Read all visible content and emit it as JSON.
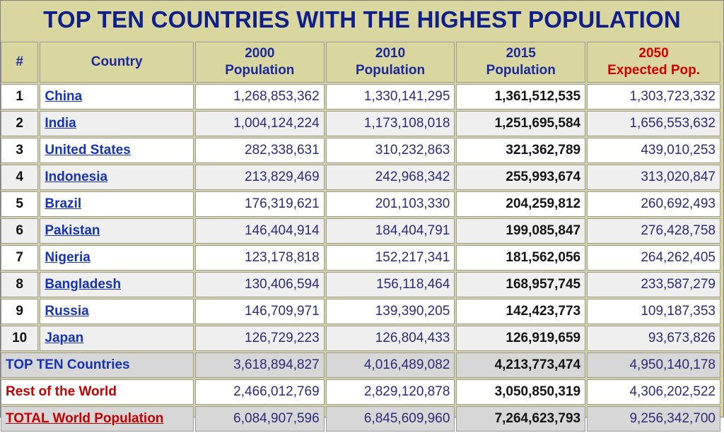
{
  "title": "TOP TEN COUNTRIES WITH THE HIGHEST POPULATION",
  "headers": {
    "rank": "#",
    "country": "Country",
    "y2000_line1": "2000",
    "y2000_line2": "Population",
    "y2010_line1": "2010",
    "y2010_line2": "Population",
    "y2015_line1": "2015",
    "y2015_line2": "Population",
    "y2050_line1": "2050",
    "y2050_line2": "Expected Pop."
  },
  "rows": [
    {
      "rank": "1",
      "country": "China",
      "p2000": "1,268,853,362",
      "p2010": "1,330,141,295",
      "p2015": "1,361,512,535",
      "p2050": "1,303,723,332"
    },
    {
      "rank": "2",
      "country": "India",
      "p2000": "1,004,124,224",
      "p2010": "1,173,108,018",
      "p2015": "1,251,695,584",
      "p2050": "1,656,553,632"
    },
    {
      "rank": "3",
      "country": "United States",
      "p2000": "282,338,631",
      "p2010": "310,232,863",
      "p2015": "321,362,789",
      "p2050": "439,010,253"
    },
    {
      "rank": "4",
      "country": "Indonesia",
      "p2000": "213,829,469",
      "p2010": "242,968,342",
      "p2015": "255,993,674",
      "p2050": "313,020,847"
    },
    {
      "rank": "5",
      "country": "Brazil",
      "p2000": "176,319,621",
      "p2010": "201,103,330",
      "p2015": "204,259,812",
      "p2050": "260,692,493"
    },
    {
      "rank": "6",
      "country": "Pakistan",
      "p2000": "146,404,914",
      "p2010": "184,404,791",
      "p2015": "199,085,847",
      "p2050": "276,428,758"
    },
    {
      "rank": "7",
      "country": "Nigeria",
      "p2000": "123,178,818",
      "p2010": "152,217,341",
      "p2015": "181,562,056",
      "p2050": "264,262,405"
    },
    {
      "rank": "8",
      "country": "Bangladesh",
      "p2000": "130,406,594",
      "p2010": "156,118,464",
      "p2015": "168,957,745",
      "p2050": "233,587,279"
    },
    {
      "rank": "9",
      "country": "Russia",
      "p2000": "146,709,971",
      "p2010": "139,390,205",
      "p2015": "142,423,773",
      "p2050": "109,187,353"
    },
    {
      "rank": "10",
      "country": "Japan",
      "p2000": "126,729,223",
      "p2010": "126,804,433",
      "p2015": "126,919,659",
      "p2050": "93,673,826"
    }
  ],
  "summary": {
    "top_ten": {
      "label": "TOP TEN Countries",
      "p2000": "3,618,894,827",
      "p2010": "4,016,489,082",
      "p2015": "4,213,773,474",
      "p2050": "4,950,140,178"
    },
    "rest": {
      "label": "Rest of the World",
      "p2000": "2,466,012,769",
      "p2010": "2,829,120,878",
      "p2015": "3,050,850,319",
      "p2050": "4,306,202,522"
    },
    "total": {
      "label": "TOTAL World Population",
      "p2000": "6,084,907,596",
      "p2010": "6,845,609,960",
      "p2015": "7,264,623,793",
      "p2050": "9,256,342,700"
    }
  },
  "colors": {
    "title": "#0e1f8a",
    "header_bg": "#d9d6a0",
    "link": "#1534b5",
    "red": "#c40000"
  }
}
